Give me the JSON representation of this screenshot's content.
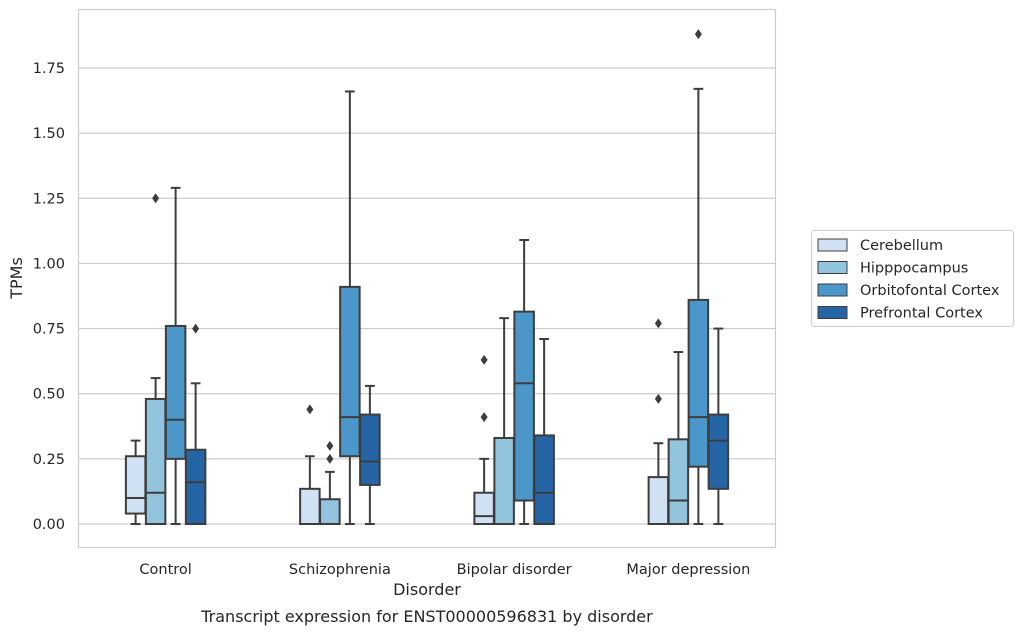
{
  "chart_data": {
    "type": "box",
    "title": "",
    "caption": "Transcript expression for ENST00000596831 by disorder",
    "xlabel": "Disorder",
    "ylabel": "TPMs",
    "categories": [
      "Control",
      "Schizophrenia",
      "Bipolar disorder",
      "Major depression"
    ],
    "ylim": [
      -0.09,
      1.97
    ],
    "yticks": [
      "0.00",
      "0.25",
      "0.50",
      "0.75",
      "1.00",
      "1.25",
      "1.50",
      "1.75"
    ],
    "ytick_values": [
      0,
      0.25,
      0.5,
      0.75,
      1.0,
      1.25,
      1.5,
      1.75
    ],
    "grid": true,
    "legend_position": "right",
    "series": [
      {
        "name": "Cerebellum",
        "color": "#cfe1f2",
        "boxes": [
          {
            "min": 0.0,
            "q1": 0.04,
            "median": 0.1,
            "q3": 0.26,
            "max": 0.32,
            "outliers": []
          },
          {
            "min": 0.0,
            "q1": 0.0,
            "median": 0.0,
            "q3": 0.135,
            "max": 0.26,
            "outliers": [
              0.44
            ]
          },
          {
            "min": 0.0,
            "q1": 0.0,
            "median": 0.03,
            "q3": 0.12,
            "max": 0.25,
            "outliers": [
              0.41,
              0.63
            ]
          },
          {
            "min": 0.0,
            "q1": 0.0,
            "median": 0.0,
            "q3": 0.18,
            "max": 0.31,
            "outliers": [
              0.48,
              0.77
            ]
          }
        ]
      },
      {
        "name": "Hipppocampus",
        "color": "#93c4de",
        "boxes": [
          {
            "min": 0.0,
            "q1": 0.0,
            "median": 0.12,
            "q3": 0.48,
            "max": 0.56,
            "outliers": [
              1.25
            ]
          },
          {
            "min": 0.0,
            "q1": 0.0,
            "median": 0.0,
            "q3": 0.095,
            "max": 0.2,
            "outliers": [
              0.25,
              0.3
            ]
          },
          {
            "min": 0.0,
            "q1": 0.0,
            "median": 0.0,
            "q3": 0.33,
            "max": 0.79,
            "outliers": []
          },
          {
            "min": 0.0,
            "q1": 0.0,
            "median": 0.09,
            "q3": 0.325,
            "max": 0.66,
            "outliers": []
          }
        ]
      },
      {
        "name": "Orbitofontal Cortex",
        "color": "#4b97c9",
        "boxes": [
          {
            "min": 0.0,
            "q1": 0.25,
            "median": 0.4,
            "q3": 0.76,
            "max": 1.29,
            "outliers": []
          },
          {
            "min": 0.0,
            "q1": 0.26,
            "median": 0.41,
            "q3": 0.91,
            "max": 1.66,
            "outliers": []
          },
          {
            "min": 0.0,
            "q1": 0.09,
            "median": 0.54,
            "q3": 0.815,
            "max": 1.09,
            "outliers": []
          },
          {
            "min": 0.0,
            "q1": 0.22,
            "median": 0.41,
            "q3": 0.86,
            "max": 1.67,
            "outliers": [
              1.88
            ]
          }
        ]
      },
      {
        "name": "Prefrontal Cortex",
        "color": "#2565a5",
        "boxes": [
          {
            "min": 0.0,
            "q1": 0.0,
            "median": 0.16,
            "q3": 0.285,
            "max": 0.54,
            "outliers": [
              0.75
            ]
          },
          {
            "min": 0.0,
            "q1": 0.15,
            "median": 0.24,
            "q3": 0.42,
            "max": 0.53,
            "outliers": []
          },
          {
            "min": 0.0,
            "q1": 0.0,
            "median": 0.12,
            "q3": 0.34,
            "max": 0.71,
            "outliers": []
          },
          {
            "min": 0.0,
            "q1": 0.135,
            "median": 0.32,
            "q3": 0.42,
            "max": 0.75,
            "outliers": []
          }
        ]
      }
    ]
  }
}
